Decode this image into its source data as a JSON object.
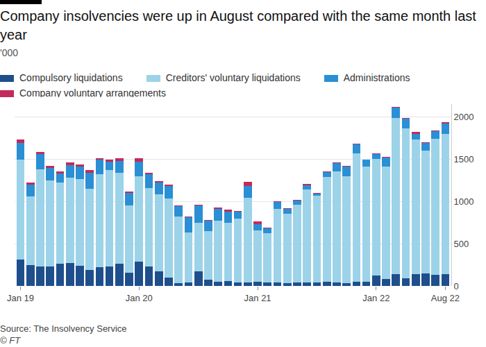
{
  "chart_data": {
    "type": "bar",
    "stacked": true,
    "grid": true,
    "title": "Company insolvencies were up in August compared with the same month last year",
    "subtitle": "'000",
    "source": "Source: The Insolvency Service",
    "credit": "© FT",
    "categories": [
      "Jan 19",
      null,
      null,
      null,
      null,
      null,
      null,
      null,
      null,
      null,
      null,
      null,
      "Jan 20",
      null,
      null,
      null,
      null,
      null,
      null,
      null,
      null,
      null,
      null,
      null,
      "Jan 21",
      null,
      null,
      null,
      null,
      null,
      null,
      null,
      null,
      null,
      null,
      null,
      "Jan 22",
      null,
      null,
      null,
      null,
      null,
      null,
      "Aug 22"
    ],
    "series": [
      {
        "name": "Compulsory liquidations",
        "color": "#1e4f8c",
        "values": [
          310,
          250,
          230,
          230,
          260,
          270,
          240,
          190,
          220,
          230,
          260,
          160,
          290,
          230,
          170,
          100,
          30,
          40,
          170,
          70,
          50,
          60,
          40,
          40,
          50,
          40,
          40,
          30,
          40,
          40,
          40,
          50,
          40,
          30,
          50,
          50,
          120,
          80,
          140,
          90,
          140,
          150,
          130,
          140
        ]
      },
      {
        "name": "Creditors' voluntary liquidations",
        "color": "#9dd3e8",
        "values": [
          1180,
          810,
          1150,
          1020,
          960,
          1010,
          1020,
          960,
          1100,
          1140,
          1080,
          790,
          1010,
          930,
          910,
          930,
          790,
          590,
          580,
          580,
          720,
          690,
          760,
          1000,
          610,
          580,
          870,
          820,
          920,
          1100,
          1030,
          1240,
          1310,
          1270,
          1520,
          1360,
          1380,
          1330,
          1850,
          1770,
          1590,
          1450,
          1610,
          1660
        ]
      },
      {
        "name": "Administrations",
        "color": "#2a8fd4",
        "values": [
          200,
          140,
          180,
          145,
          110,
          150,
          150,
          190,
          170,
          100,
          140,
          150,
          170,
          160,
          140,
          150,
          120,
          180,
          200,
          120,
          140,
          130,
          80,
          140,
          70,
          60,
          80,
          60,
          50,
          50,
          25,
          55,
          100,
          115,
          100,
          80,
          60,
          110,
          120,
          120,
          70,
          90,
          90,
          120
        ]
      },
      {
        "name": "Company voluntary arrangements",
        "color": "#c42a5b",
        "values": [
          40,
          20,
          25,
          25,
          20,
          30,
          30,
          30,
          20,
          20,
          30,
          20,
          40,
          20,
          20,
          20,
          10,
          10,
          10,
          10,
          20,
          20,
          10,
          50,
          30,
          10,
          10,
          10,
          10,
          20,
          5,
          5,
          10,
          5,
          10,
          5,
          10,
          5,
          10,
          10,
          20,
          10,
          5,
          20
        ]
      }
    ],
    "ylim": [
      0,
      2150
    ],
    "yticks": [
      0,
      500,
      1000,
      1500,
      2000
    ]
  }
}
